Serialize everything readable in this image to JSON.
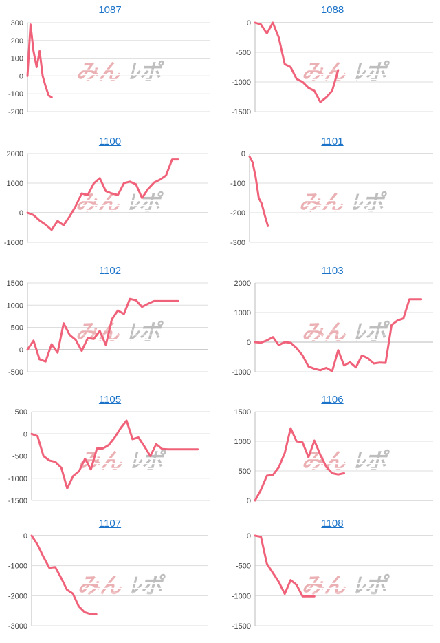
{
  "colors": {
    "line": "#f0627a",
    "grid": "#dddddd",
    "axis": "#bbbbbb",
    "link": "#1a73c8",
    "watermark_left": "#e8a8ab",
    "watermark_right": "#b8b8b8"
  },
  "watermark": {
    "left": "みん",
    "right": "ﾚポ"
  },
  "chart_data": [
    {
      "type": "line",
      "title": "1087",
      "ylim": [
        -200,
        300
      ],
      "yticks": [
        -200,
        -100,
        0,
        100,
        200,
        300
      ],
      "yticklabels": [
        "-200",
        "-100",
        "0",
        "100",
        "200",
        "300"
      ],
      "x_max": 30,
      "x": [
        0,
        0.5,
        1,
        1.5,
        2,
        2.5,
        3,
        3.5,
        4
      ],
      "values": [
        0,
        290,
        140,
        50,
        140,
        0,
        -60,
        -110,
        -120
      ]
    },
    {
      "type": "line",
      "title": "1088",
      "ylim": [
        -1500,
        0
      ],
      "yticks": [
        -1500,
        -1000,
        -500,
        0
      ],
      "yticklabels": [
        "-1500",
        "-1000",
        "-500",
        "0"
      ],
      "x_max": 30,
      "x": [
        0,
        1,
        2,
        3,
        4,
        5,
        6,
        7,
        8,
        9,
        10,
        11,
        12,
        13,
        14
      ],
      "values": [
        0,
        -30,
        -180,
        0,
        -250,
        -700,
        -750,
        -950,
        -1000,
        -1100,
        -1150,
        -1340,
        -1260,
        -1150,
        -800
      ]
    },
    {
      "type": "line",
      "title": "1100",
      "ylim": [
        -1000,
        2000
      ],
      "yticks": [
        -1000,
        0,
        1000,
        2000
      ],
      "yticklabels": [
        "-1000",
        "0",
        "1000",
        "2000"
      ],
      "x_max": 30,
      "x": [
        0,
        1,
        2,
        3,
        4,
        5,
        6,
        7,
        8,
        9,
        10,
        11,
        12,
        13,
        14,
        15,
        16,
        17,
        18,
        19,
        20,
        21,
        22,
        23,
        24,
        25
      ],
      "values": [
        0,
        -80,
        -260,
        -400,
        -580,
        -280,
        -420,
        -120,
        220,
        650,
        600,
        990,
        1170,
        730,
        650,
        600,
        1000,
        1050,
        960,
        500,
        800,
        1020,
        1120,
        1260,
        1800,
        1800
      ]
    },
    {
      "type": "line",
      "title": "1101",
      "ylim": [
        -300,
        0
      ],
      "yticks": [
        -300,
        -200,
        -100,
        0
      ],
      "yticklabels": [
        "-300",
        "-200",
        "-100",
        "0"
      ],
      "x_max": 30,
      "x": [
        0,
        0.5,
        1,
        1.5,
        2,
        2.5,
        3
      ],
      "values": [
        -10,
        -30,
        -80,
        -150,
        -170,
        -210,
        -245
      ]
    },
    {
      "type": "line",
      "title": "1102",
      "ylim": [
        -500,
        1500
      ],
      "yticks": [
        -500,
        0,
        500,
        1000,
        1500
      ],
      "yticklabels": [
        "-500",
        "0",
        "500",
        "1000",
        "1500"
      ],
      "x_max": 30,
      "x": [
        0,
        1,
        2,
        3,
        4,
        5,
        6,
        7,
        8,
        9,
        10,
        11,
        12,
        13,
        14,
        15,
        16,
        17,
        18,
        19,
        20,
        21,
        22,
        23,
        24,
        25
      ],
      "values": [
        0,
        200,
        -220,
        -270,
        120,
        -70,
        590,
        330,
        220,
        -30,
        260,
        240,
        420,
        100,
        680,
        880,
        800,
        1140,
        1110,
        960,
        1030,
        1090,
        1090,
        1090,
        1090,
        1090
      ]
    },
    {
      "type": "line",
      "title": "1103",
      "ylim": [
        -1000,
        2000
      ],
      "yticks": [
        -1000,
        0,
        1000,
        2000
      ],
      "yticklabels": [
        "-1000",
        "0",
        "1000",
        "2000"
      ],
      "x_max": 30,
      "x": [
        0,
        1,
        2,
        3,
        4,
        5,
        6,
        7,
        8,
        9,
        10,
        11,
        12,
        13,
        14,
        15,
        16,
        17,
        18,
        19,
        20,
        21,
        22,
        23,
        24,
        25,
        26,
        27,
        28
      ],
      "values": [
        0,
        -20,
        60,
        170,
        -100,
        0,
        -20,
        -200,
        -450,
        -820,
        -900,
        -950,
        -870,
        -980,
        -270,
        -790,
        -680,
        -850,
        -450,
        -540,
        -720,
        -690,
        -700,
        580,
        730,
        800,
        1450,
        1450,
        1450
      ]
    },
    {
      "type": "line",
      "title": "1105",
      "ylim": [
        -1500,
        500
      ],
      "yticks": [
        -1500,
        -1000,
        -500,
        0,
        500
      ],
      "yticklabels": [
        "-1500",
        "-1000",
        "-500",
        "0",
        "500"
      ],
      "x_max": 30,
      "x": [
        0,
        1,
        2,
        3,
        4,
        5,
        6,
        7,
        8,
        9,
        10,
        11,
        12,
        13,
        14,
        15,
        16,
        17,
        18,
        19,
        20,
        21,
        22,
        23,
        24,
        25,
        26,
        27,
        28
      ],
      "values": [
        0,
        -50,
        -500,
        -600,
        -630,
        -760,
        -1230,
        -950,
        -840,
        -560,
        -800,
        -330,
        -330,
        -250,
        -80,
        130,
        300,
        -120,
        -80,
        -280,
        -500,
        -230,
        -340,
        -350,
        -350,
        -350,
        -350,
        -350,
        -350
      ]
    },
    {
      "type": "line",
      "title": "1106",
      "ylim": [
        0,
        1500
      ],
      "yticks": [
        0,
        500,
        1000,
        1500
      ],
      "yticklabels": [
        "0",
        "500",
        "1000",
        "1500"
      ],
      "x_max": 30,
      "x": [
        0,
        1,
        2,
        3,
        4,
        5,
        6,
        7,
        8,
        9,
        10,
        11,
        12,
        13,
        14,
        15
      ],
      "values": [
        0,
        180,
        420,
        430,
        560,
        800,
        1220,
        1000,
        980,
        730,
        1010,
        770,
        570,
        460,
        440,
        460
      ]
    },
    {
      "type": "line",
      "title": "1107",
      "ylim": [
        -3000,
        0
      ],
      "yticks": [
        -3000,
        -2000,
        -1000,
        0
      ],
      "yticklabels": [
        "-3000",
        "-2000",
        "-1000",
        "0"
      ],
      "x_max": 30,
      "x": [
        0,
        1,
        2,
        3,
        4,
        5,
        6,
        7,
        8,
        9,
        10,
        11
      ],
      "values": [
        0,
        -300,
        -700,
        -1070,
        -1050,
        -1400,
        -1800,
        -1930,
        -2350,
        -2550,
        -2610,
        -2620
      ]
    },
    {
      "type": "line",
      "title": "1108",
      "ylim": [
        -1500,
        0
      ],
      "yticks": [
        -1500,
        -1000,
        -500,
        0
      ],
      "yticklabels": [
        "-1500",
        "-1000",
        "-500",
        "0"
      ],
      "x_max": 30,
      "x": [
        0,
        1,
        2,
        3,
        4,
        5,
        6,
        7,
        8,
        9,
        10
      ],
      "values": [
        0,
        -20,
        -470,
        -620,
        -770,
        -970,
        -740,
        -820,
        -1010,
        -1010,
        -1010
      ]
    }
  ]
}
